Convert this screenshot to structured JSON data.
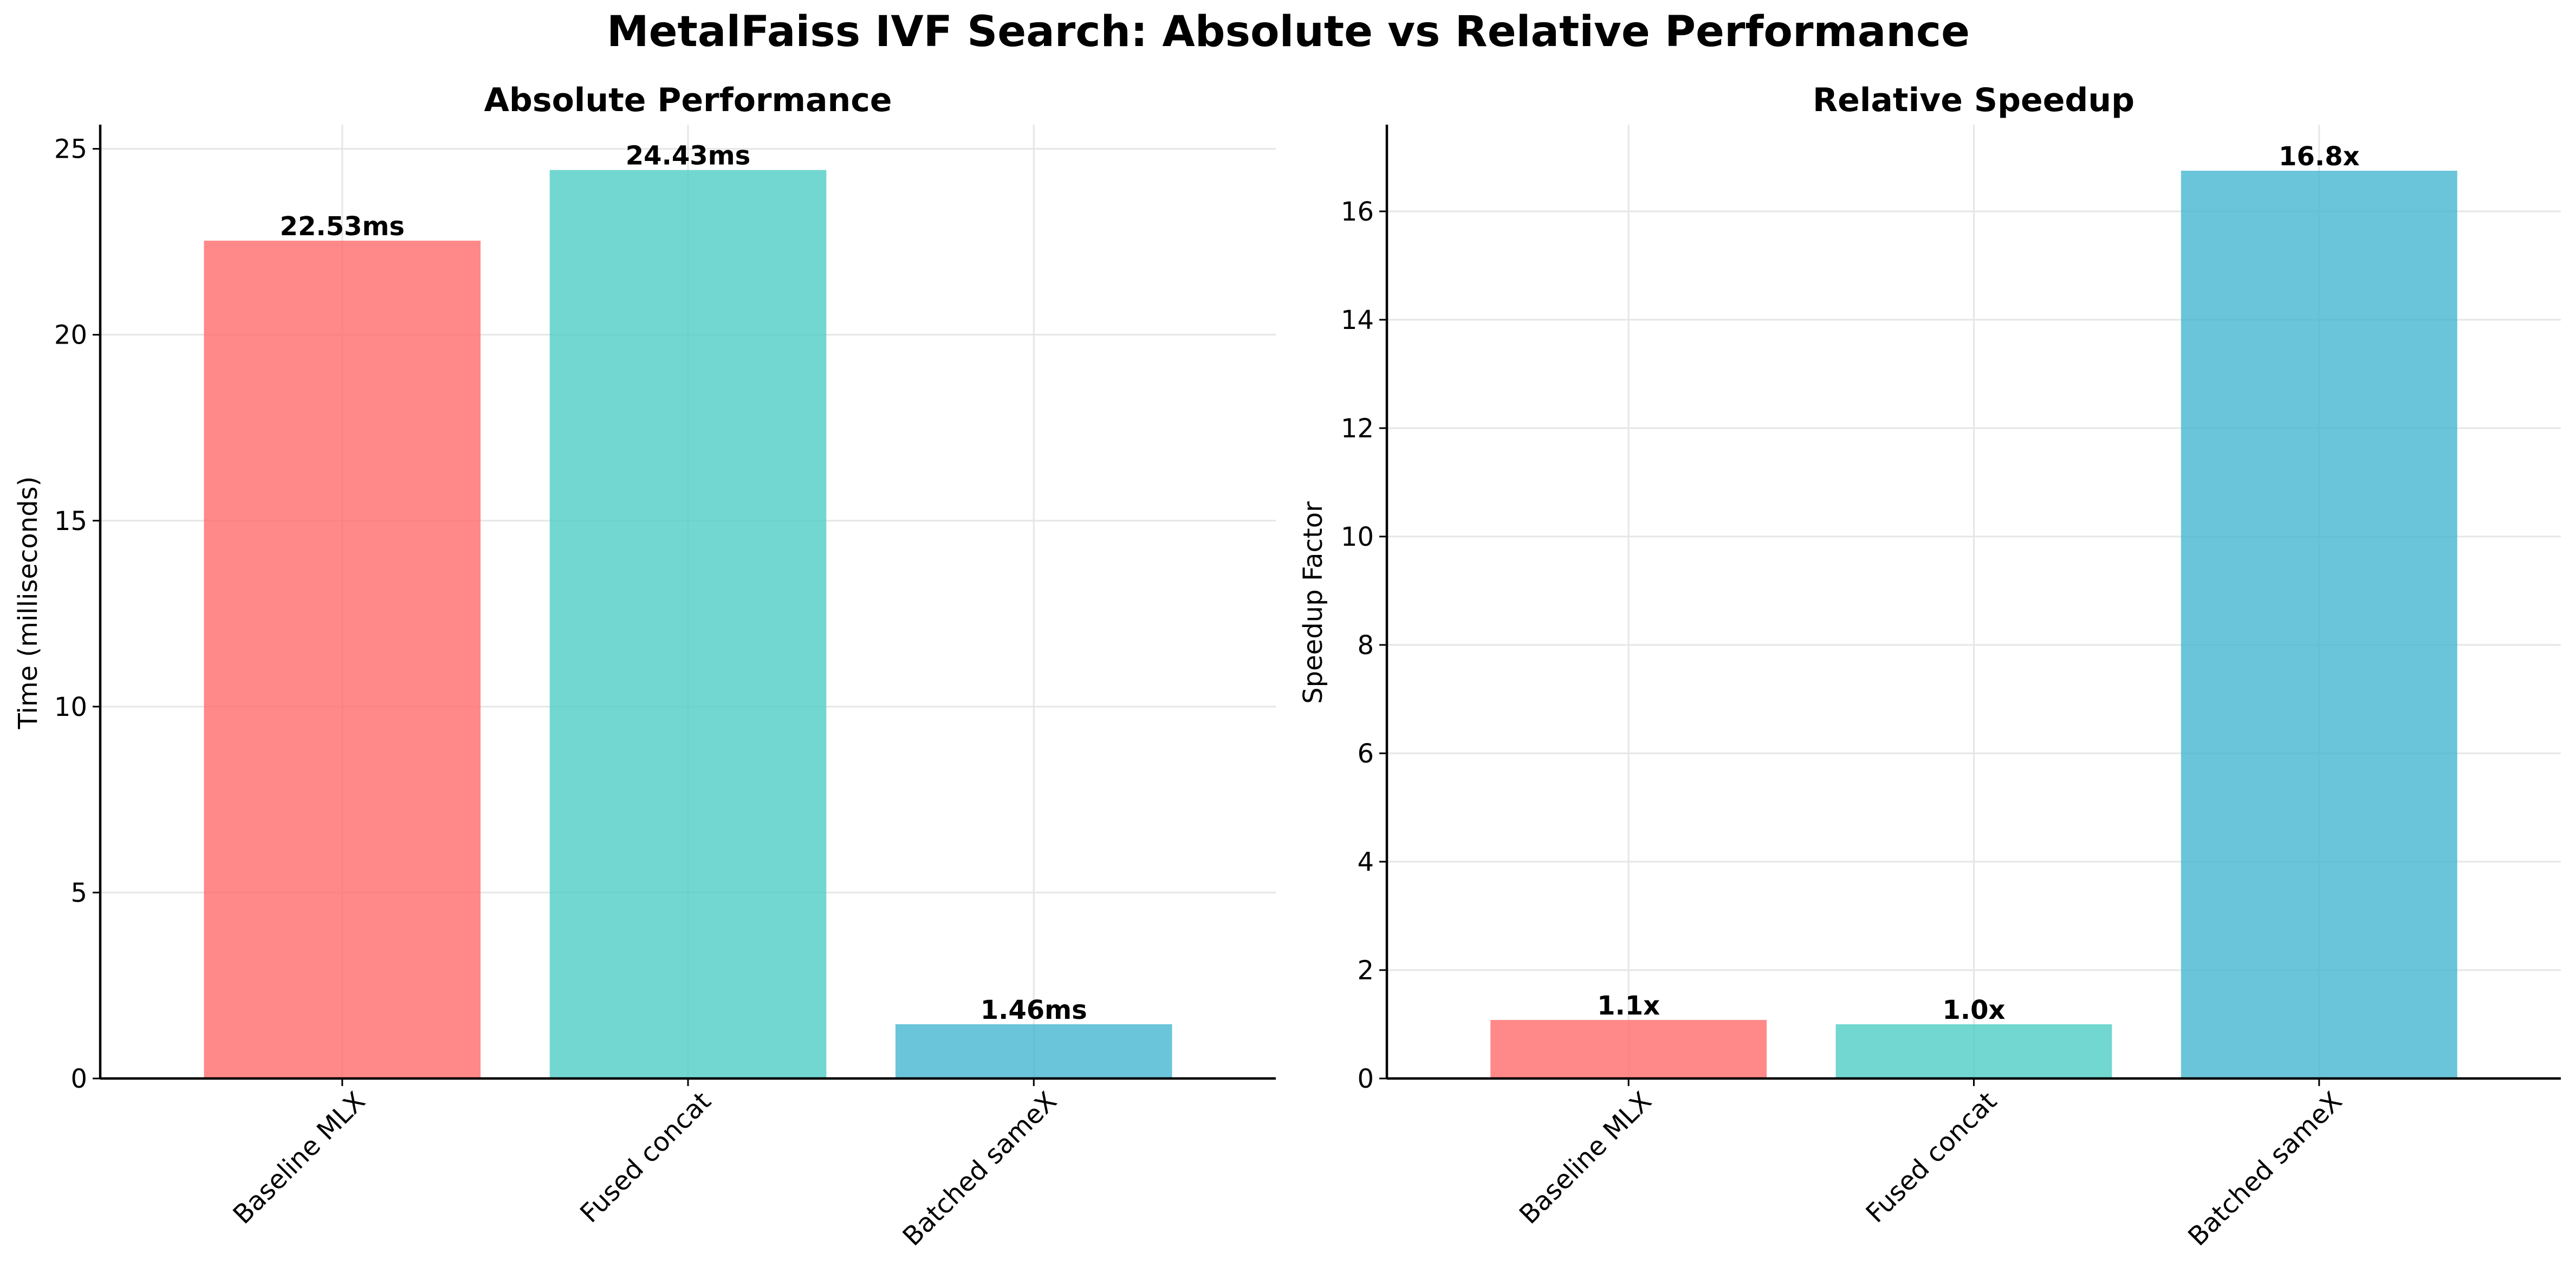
{
  "figure_title": "MetalFaiss IVF Search: Absolute vs Relative Performance",
  "colors": {
    "baseline": "#ff6b6b",
    "fused": "#4ecdc4",
    "batched": "#45b7d1",
    "bar_opacity": 0.8
  },
  "chart_data": [
    {
      "type": "bar",
      "title": "Absolute Performance",
      "xlabel": "",
      "ylabel": "Time (milliseconds)",
      "categories": [
        "Baseline MLX",
        "Fused concat",
        "Batched sameX"
      ],
      "values": [
        22.53,
        24.43,
        1.46
      ],
      "data_labels": [
        "22.53ms",
        "24.43ms",
        "1.46ms"
      ],
      "ylim": [
        0,
        25.65
      ],
      "yticks": [
        0,
        5,
        10,
        15,
        20,
        25
      ],
      "grid": true,
      "legend": "none"
    },
    {
      "type": "bar",
      "title": "Relative Speedup",
      "xlabel": "",
      "ylabel": "Speedup Factor",
      "categories": [
        "Baseline MLX",
        "Fused concat",
        "Batched sameX"
      ],
      "values": [
        1.08,
        1.0,
        16.75
      ],
      "data_labels": [
        "1.1x",
        "1.0x",
        "16.8x"
      ],
      "ylim": [
        0,
        17.6
      ],
      "yticks": [
        0,
        2,
        4,
        6,
        8,
        10,
        12,
        14,
        16
      ],
      "grid": true,
      "legend": "none"
    }
  ]
}
